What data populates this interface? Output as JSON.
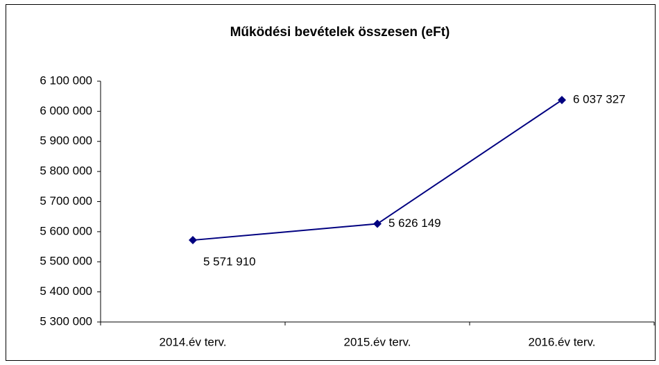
{
  "chart_data": {
    "type": "line",
    "title": "Működési bevételek összesen (eFt)",
    "categories": [
      "2014.év terv.",
      "2015.év terv.",
      "2016.év terv."
    ],
    "series": [
      {
        "name": "Működési bevételek összesen",
        "color": "#000080",
        "values": [
          5571910,
          5626149,
          6037327
        ],
        "value_labels": [
          "5 571 910",
          "5 626 149",
          "6 037 327"
        ]
      }
    ],
    "ylim": [
      5300000,
      6100000
    ],
    "yticks": [
      {
        "value": 5300000,
        "label": "5 300 000"
      },
      {
        "value": 5400000,
        "label": "5 400 000"
      },
      {
        "value": 5500000,
        "label": "5 500 000"
      },
      {
        "value": 5600000,
        "label": "5 600 000"
      },
      {
        "value": 5700000,
        "label": "5 700 000"
      },
      {
        "value": 5800000,
        "label": "5 800 000"
      },
      {
        "value": 5900000,
        "label": "5 900 000"
      },
      {
        "value": 6000000,
        "label": "6 000 000"
      },
      {
        "value": 6100000,
        "label": "6 100 000"
      }
    ],
    "grid": false
  }
}
